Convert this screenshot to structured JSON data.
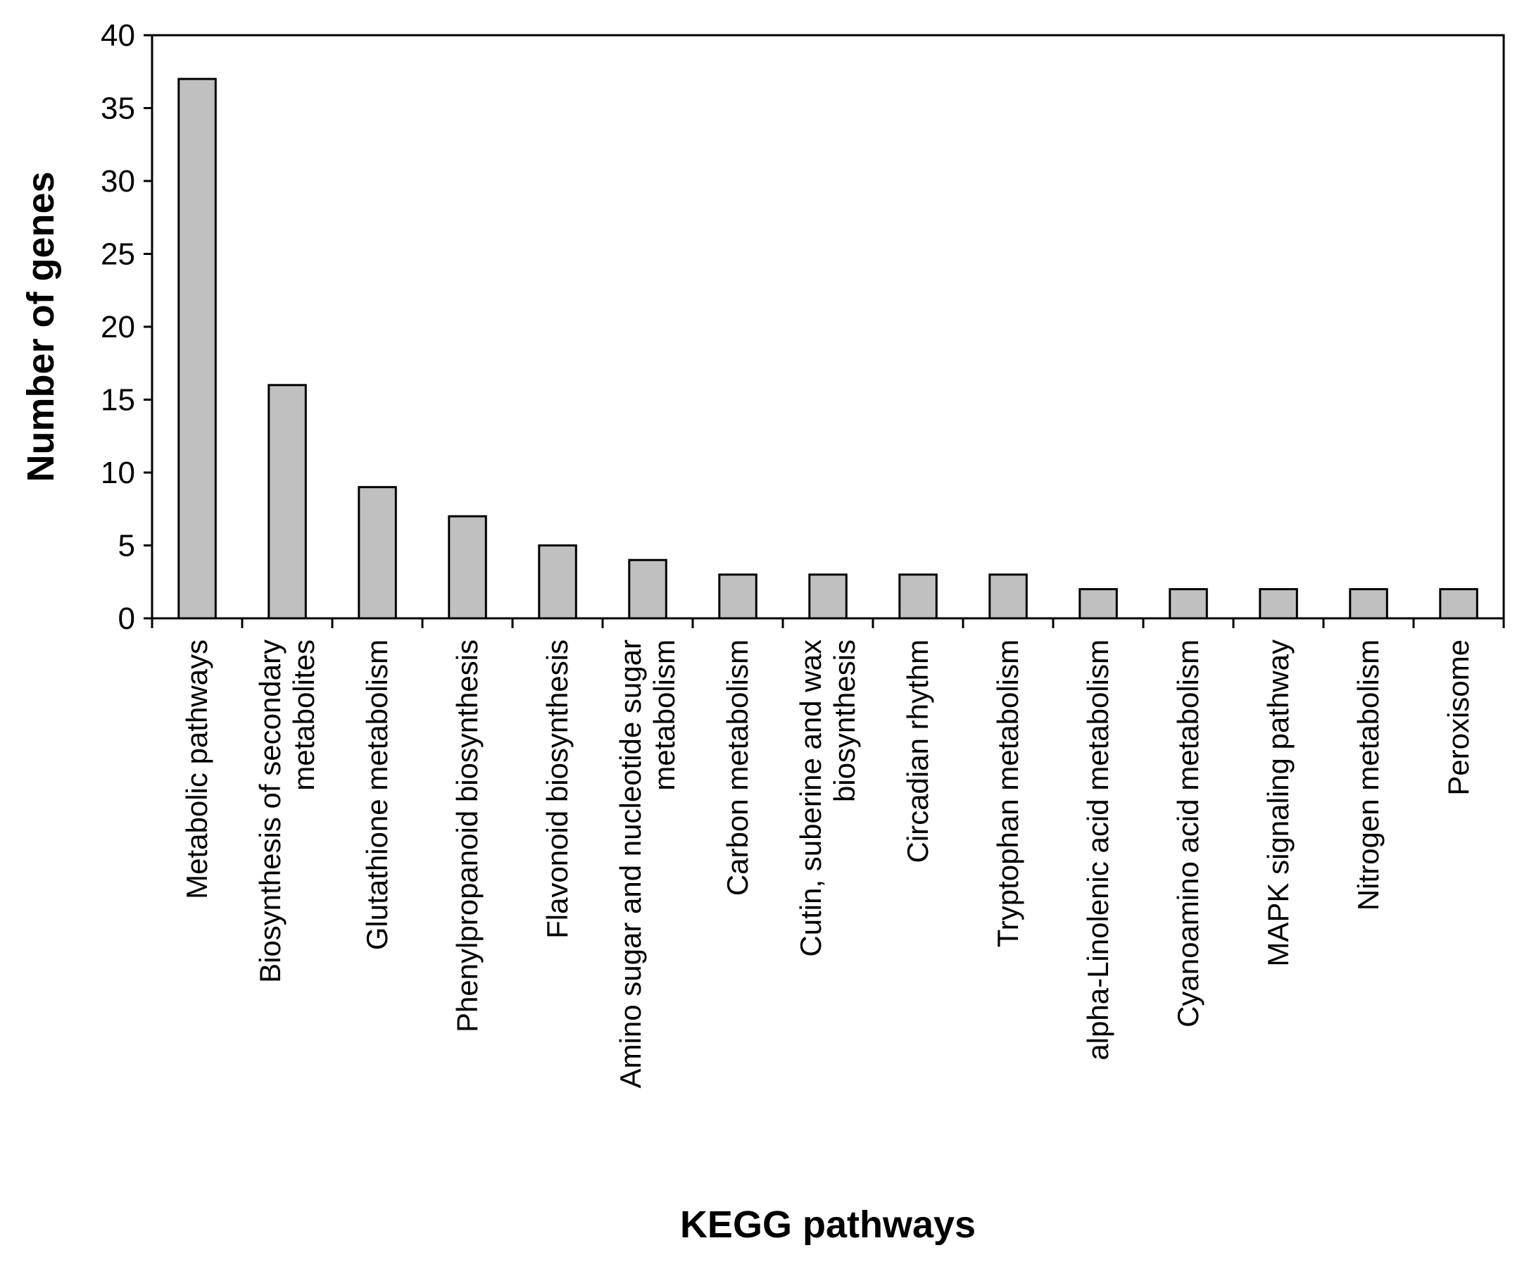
{
  "chart_data": {
    "type": "bar",
    "title": "",
    "xlabel": "KEGG pathways",
    "ylabel": "Number of genes",
    "ylim": [
      0,
      40
    ],
    "yticks": [
      0,
      5,
      10,
      15,
      20,
      25,
      30,
      35,
      40
    ],
    "grid": false,
    "legend": "none",
    "bar_color": "#c0c0c0",
    "bar_edge_color": "#000000",
    "categories": [
      [
        "Metabolic pathways"
      ],
      [
        "Biosynthesis of secondary",
        "metabolites"
      ],
      [
        "Glutathione metabolism"
      ],
      [
        "Phenylpropanoid biosynthesis"
      ],
      [
        "Flavonoid biosynthesis"
      ],
      [
        "Amino sugar and nucleotide sugar",
        "metabolism"
      ],
      [
        "Carbon metabolism"
      ],
      [
        "Cutin, suberine and wax",
        "biosynthesis"
      ],
      [
        "Circadian rhythm"
      ],
      [
        "Tryptophan metabolism"
      ],
      [
        "alpha-Linolenic acid metabolism"
      ],
      [
        "Cyanoamino acid metabolism"
      ],
      [
        "MAPK signaling pathway"
      ],
      [
        "Nitrogen metabolism"
      ],
      [
        "Peroxisome"
      ]
    ],
    "values": [
      37,
      16,
      9,
      7,
      5,
      4,
      3,
      3,
      3,
      3,
      2,
      2,
      2,
      2,
      2
    ]
  }
}
